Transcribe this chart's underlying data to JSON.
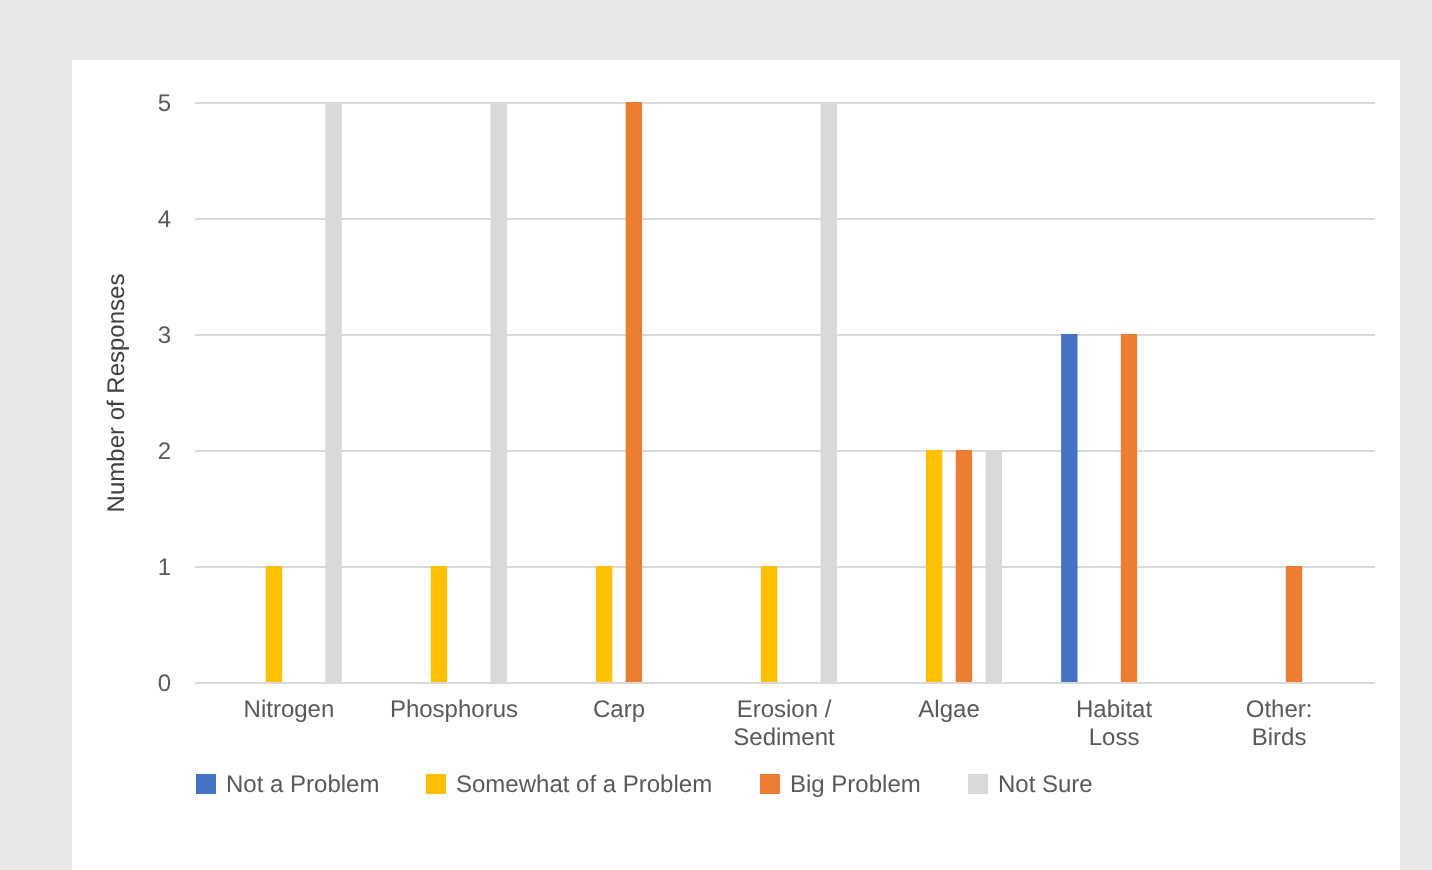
{
  "chart_data": {
    "type": "bar",
    "ylabel": "Number of Responses",
    "categories": [
      "Nitrogen",
      "Phosphorus",
      "Carp",
      "Erosion /\nSediment",
      "Algae",
      "Habitat\nLoss",
      "Other:\nBirds"
    ],
    "series": [
      {
        "name": "Not a Problem",
        "color": "#4472c4",
        "values": [
          0,
          0,
          0,
          0,
          0,
          3,
          0
        ]
      },
      {
        "name": "Somewhat of a Problem",
        "color": "#ffc000",
        "values": [
          1,
          1,
          1,
          1,
          2,
          0,
          0
        ]
      },
      {
        "name": "Big Problem",
        "color": "#ed7d31",
        "values": [
          0,
          0,
          5,
          0,
          2,
          3,
          1
        ]
      },
      {
        "name": "Not Sure",
        "color": "#d9d9d9",
        "values": [
          5,
          5,
          0,
          5,
          2,
          0,
          0
        ]
      }
    ],
    "ylim": [
      0,
      5
    ],
    "yticks": [
      0,
      1,
      2,
      3,
      4,
      5
    ],
    "grid": "y",
    "legend": "bottom"
  }
}
